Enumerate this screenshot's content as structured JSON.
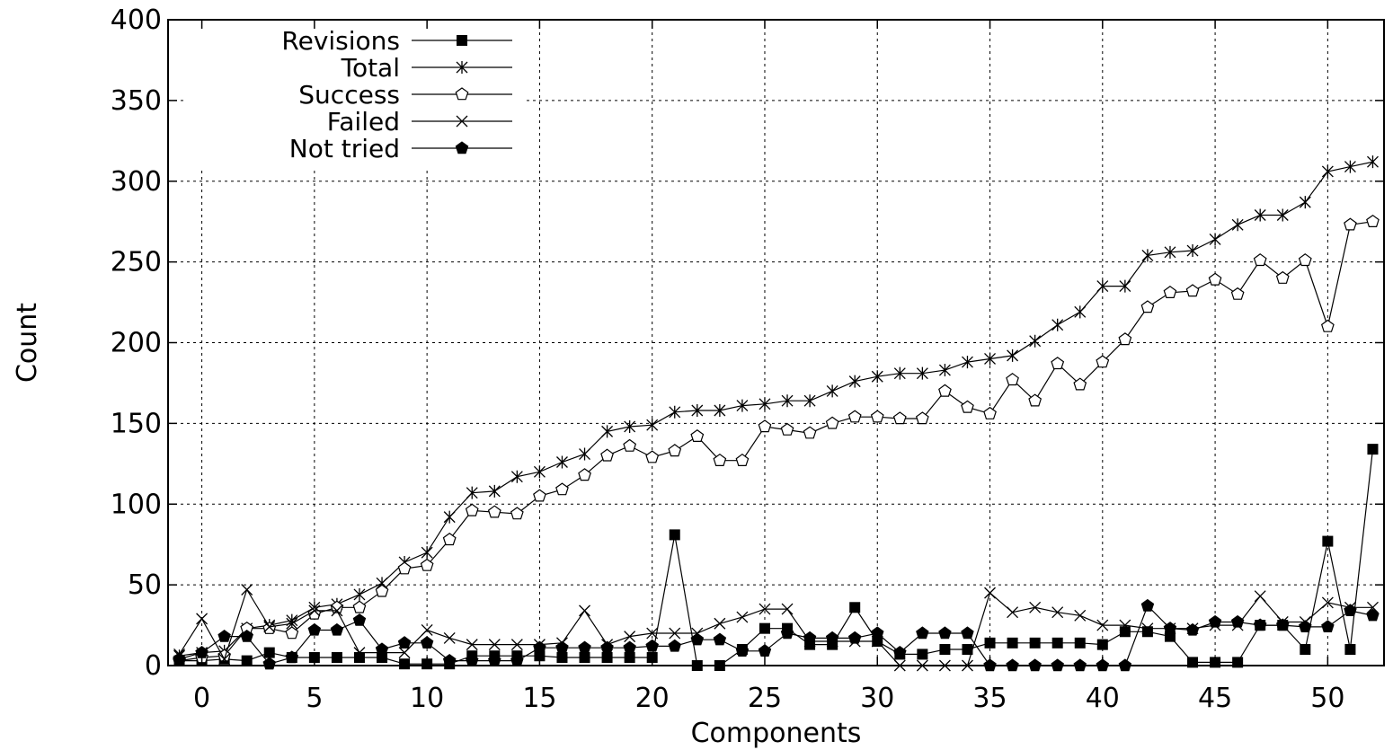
{
  "chart_data": {
    "type": "line",
    "title": "",
    "xlabel": "Components",
    "ylabel": "Count",
    "xlim": [
      -1.5,
      52.5
    ],
    "ylim": [
      0,
      400
    ],
    "xticks": [
      0,
      5,
      10,
      15,
      20,
      25,
      30,
      35,
      40,
      45,
      50
    ],
    "yticks": [
      0,
      50,
      100,
      150,
      200,
      250,
      300,
      350,
      400
    ],
    "grid": true,
    "legend": "top-left",
    "x": [
      -1,
      0,
      1,
      2,
      3,
      4,
      5,
      6,
      7,
      8,
      9,
      10,
      11,
      12,
      13,
      14,
      15,
      16,
      17,
      18,
      19,
      20,
      21,
      22,
      23,
      24,
      25,
      26,
      27,
      28,
      29,
      30,
      31,
      32,
      33,
      34,
      35,
      36,
      37,
      38,
      39,
      40,
      41,
      42,
      43,
      44,
      45,
      46,
      47,
      48,
      49,
      50,
      51,
      52
    ],
    "series": [
      {
        "name": "Revisions",
        "marker": "filled-square",
        "values": [
          3,
          3,
          4,
          3,
          8,
          5,
          5,
          5,
          5,
          5,
          1,
          1,
          1,
          6,
          6,
          6,
          6,
          5,
          5,
          5,
          5,
          5,
          81,
          0,
          0,
          10,
          23,
          23,
          13,
          13,
          36,
          15,
          7,
          7,
          10,
          10,
          14,
          14,
          14,
          14,
          14,
          13,
          21,
          21,
          18,
          2,
          2,
          2,
          25,
          25,
          10,
          77,
          10,
          134
        ]
      },
      {
        "name": "Total",
        "marker": "asterisk",
        "values": [
          6,
          8,
          9,
          23,
          25,
          28,
          36,
          38,
          44,
          51,
          64,
          70,
          92,
          107,
          108,
          117,
          120,
          126,
          131,
          145,
          148,
          149,
          157,
          158,
          158,
          161,
          162,
          164,
          164,
          170,
          176,
          179,
          181,
          181,
          183,
          188,
          190,
          192,
          201,
          211,
          219,
          235,
          235,
          254,
          256,
          257,
          264,
          273,
          279,
          279,
          287,
          306,
          309,
          312
        ]
      },
      {
        "name": "Success",
        "marker": "open-pentagon",
        "values": [
          3,
          5,
          6,
          23,
          23,
          20,
          32,
          36,
          36,
          46,
          60,
          62,
          78,
          96,
          95,
          94,
          105,
          109,
          118,
          130,
          136,
          129,
          133,
          142,
          127,
          127,
          148,
          146,
          144,
          150,
          154,
          154,
          153,
          153,
          170,
          160,
          156,
          177,
          164,
          187,
          174,
          188,
          202,
          222,
          231,
          232,
          239,
          230,
          251,
          240,
          251,
          210,
          273,
          275
        ]
      },
      {
        "name": "Failed",
        "marker": "cross",
        "values": [
          7,
          29,
          4,
          47,
          24,
          26,
          34,
          34,
          8,
          8,
          8,
          22,
          17,
          13,
          13,
          13,
          13,
          14,
          34,
          13,
          18,
          20,
          20,
          20,
          26,
          30,
          35,
          35,
          15,
          15,
          15,
          15,
          0,
          0,
          0,
          0,
          45,
          33,
          36,
          33,
          31,
          25,
          25,
          23,
          23,
          23,
          25,
          25,
          43,
          27,
          27,
          39,
          36,
          36
        ]
      },
      {
        "name": "Not tried",
        "marker": "filled-pentagon",
        "values": [
          4,
          8,
          18,
          18,
          1,
          5,
          22,
          22,
          28,
          10,
          14,
          14,
          3,
          3,
          3,
          3,
          11,
          11,
          11,
          11,
          11,
          12,
          12,
          16,
          16,
          9,
          9,
          20,
          17,
          17,
          17,
          20,
          8,
          20,
          20,
          20,
          0,
          0,
          0,
          0,
          0,
          0,
          0,
          37,
          23,
          22,
          27,
          27,
          25,
          25,
          24,
          24,
          34,
          31
        ]
      }
    ]
  }
}
